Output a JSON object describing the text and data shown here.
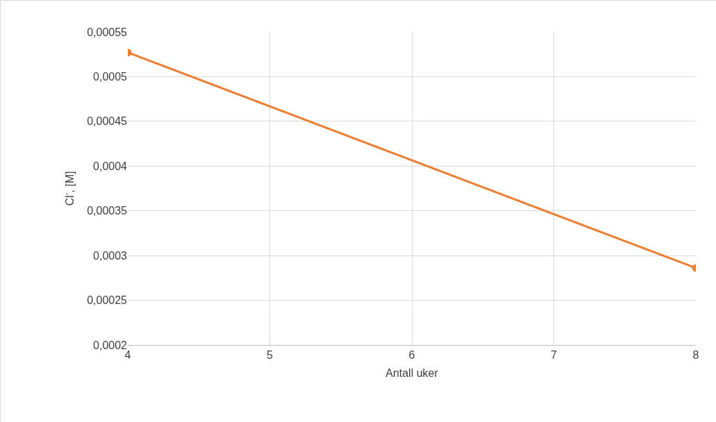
{
  "chart_data": {
    "type": "line",
    "xlabel": "Antall uker",
    "ylabel": "Cl$^{-}$, [M]",
    "x": [
      4,
      8
    ],
    "series": [
      {
        "color": "#ed7d31",
        "values": [
          0.000527,
          0.000286
        ]
      }
    ],
    "xlim": [
      4,
      8
    ],
    "xticks": [
      4,
      5,
      6,
      7,
      8
    ],
    "ylim": [
      0.0002,
      0.00055
    ],
    "yticks": [
      {
        "value": 0.0002,
        "label": "0,0002"
      },
      {
        "value": 0.00025,
        "label": "0,00025"
      },
      {
        "value": 0.0003,
        "label": "0,0003"
      },
      {
        "value": 0.00035,
        "label": "0,00035"
      },
      {
        "value": 0.0004,
        "label": "0,0004"
      },
      {
        "value": 0.00045,
        "label": "0,00045"
      },
      {
        "value": 0.0005,
        "label": "0,0005"
      },
      {
        "value": 0.00055,
        "label": "0,00055"
      }
    ],
    "grid": true,
    "legend": false,
    "marker": "circle",
    "line_style": "solid"
  }
}
